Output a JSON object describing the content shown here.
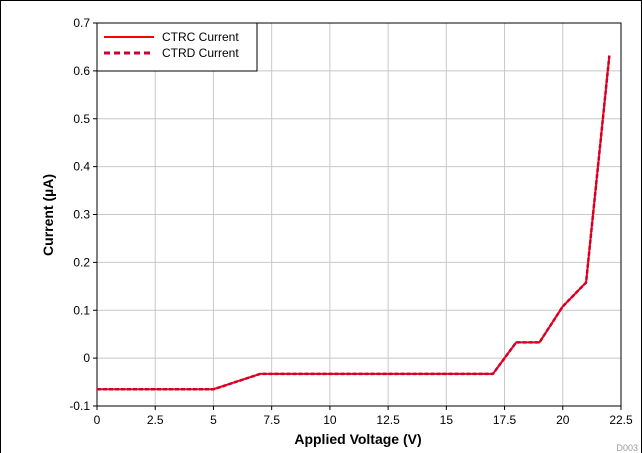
{
  "chart_data": {
    "type": "line",
    "xlabel": "Applied Voltage (V)",
    "ylabel": "Current (µA)",
    "xlim": [
      0,
      22.5
    ],
    "ylim": [
      -0.1,
      0.7
    ],
    "xticks": [
      "0",
      "2.5",
      "5",
      "7.5",
      "10",
      "12.5",
      "15",
      "17.5",
      "20",
      "22.5"
    ],
    "yticks": [
      "-0.1",
      "0",
      "0.1",
      "0.2",
      "0.3",
      "0.4",
      "0.5",
      "0.6",
      "0.7"
    ],
    "grid": true,
    "legend_position": "top-left",
    "figure_id": "D003",
    "x": [
      0,
      1,
      2,
      3,
      4,
      5,
      6,
      7,
      8,
      9,
      10,
      11,
      12,
      13,
      14,
      15,
      16,
      17,
      18,
      19,
      20,
      21,
      22
    ],
    "series": [
      {
        "name": "CTRC Current",
        "style": "solid",
        "color": "#ff0000",
        "values": [
          -0.065,
          -0.065,
          -0.065,
          -0.065,
          -0.065,
          -0.065,
          -0.049,
          -0.033,
          -0.033,
          -0.033,
          -0.033,
          -0.033,
          -0.033,
          -0.033,
          -0.033,
          -0.033,
          -0.033,
          -0.033,
          0.033,
          0.033,
          0.108,
          0.158,
          0.632
        ]
      },
      {
        "name": "CTRD Current",
        "style": "dashed",
        "color": "#cc0033",
        "values": [
          -0.065,
          -0.065,
          -0.065,
          -0.065,
          -0.065,
          -0.065,
          -0.049,
          -0.033,
          -0.033,
          -0.033,
          -0.033,
          -0.033,
          -0.033,
          -0.033,
          -0.033,
          -0.033,
          -0.033,
          -0.033,
          0.033,
          0.033,
          0.108,
          0.158,
          0.632
        ]
      }
    ]
  }
}
